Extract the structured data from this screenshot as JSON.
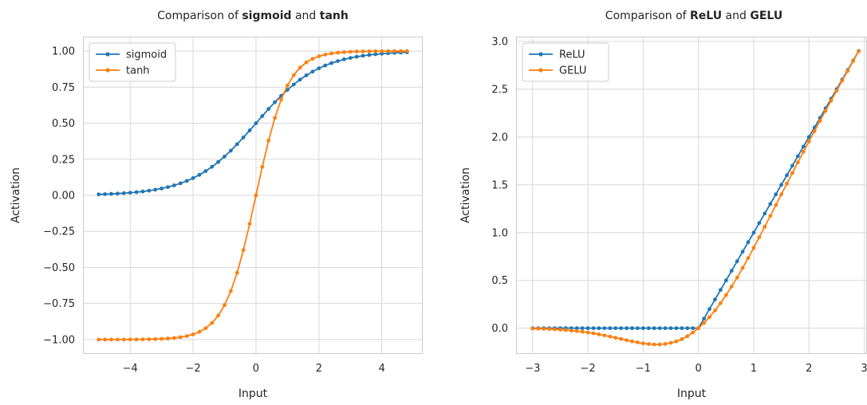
{
  "chart_data": [
    {
      "type": "line",
      "title": {
        "prefix": "Comparison of ",
        "bold1": "sigmoid",
        "mid": " and ",
        "bold2": "tanh"
      },
      "xlabel": "Input",
      "ylabel": "Activation",
      "xlim": [
        -5.5,
        5.3
      ],
      "ylim": [
        -1.1,
        1.1
      ],
      "xticks": [
        -4,
        -2,
        0,
        2,
        4
      ],
      "xtick_labels": [
        "−4",
        "−2",
        "0",
        "2",
        "4"
      ],
      "yticks": [
        -1.0,
        -0.75,
        -0.5,
        -0.25,
        0.0,
        0.25,
        0.5,
        0.75,
        1.0
      ],
      "ytick_labels": [
        "−1.00",
        "−0.75",
        "−0.50",
        "−0.25",
        "0.00",
        "0.25",
        "0.50",
        "0.75",
        "1.00"
      ],
      "grid": true,
      "legend_position": "top-left",
      "series": [
        {
          "name": "sigmoid",
          "color": "#1f77b4",
          "x": [
            -5.0,
            -4.8,
            -4.6,
            -4.4,
            -4.2,
            -4.0,
            -3.8,
            -3.6,
            -3.4,
            -3.2,
            -3.0,
            -2.8,
            -2.6,
            -2.4,
            -2.2,
            -2.0,
            -1.8,
            -1.6,
            -1.4,
            -1.2,
            -1.0,
            -0.8,
            -0.6,
            -0.4,
            -0.2,
            0.0,
            0.2,
            0.4,
            0.6,
            0.8,
            1.0,
            1.2,
            1.4,
            1.6,
            1.8,
            2.0,
            2.2,
            2.4,
            2.6,
            2.8,
            3.0,
            3.2,
            3.4,
            3.6,
            3.8,
            4.0,
            4.2,
            4.4,
            4.6,
            4.8
          ],
          "y": [
            0.0067,
            0.0082,
            0.01,
            0.0121,
            0.0148,
            0.018,
            0.0219,
            0.0266,
            0.0323,
            0.0392,
            0.0474,
            0.0573,
            0.0691,
            0.0832,
            0.0998,
            0.1192,
            0.1419,
            0.168,
            0.1978,
            0.2315,
            0.2689,
            0.31,
            0.3543,
            0.4013,
            0.4502,
            0.5,
            0.5498,
            0.5987,
            0.6457,
            0.69,
            0.7311,
            0.7685,
            0.8022,
            0.832,
            0.8581,
            0.8808,
            0.9002,
            0.9168,
            0.9309,
            0.9427,
            0.9526,
            0.9608,
            0.9677,
            0.9734,
            0.9781,
            0.982,
            0.9852,
            0.9879,
            0.99,
            0.9918
          ]
        },
        {
          "name": "tanh",
          "color": "#ff7f0e",
          "x": [
            -5.0,
            -4.8,
            -4.6,
            -4.4,
            -4.2,
            -4.0,
            -3.8,
            -3.6,
            -3.4,
            -3.2,
            -3.0,
            -2.8,
            -2.6,
            -2.4,
            -2.2,
            -2.0,
            -1.8,
            -1.6,
            -1.4,
            -1.2,
            -1.0,
            -0.8,
            -0.6,
            -0.4,
            -0.2,
            0.0,
            0.2,
            0.4,
            0.6,
            0.8,
            1.0,
            1.2,
            1.4,
            1.6,
            1.8,
            2.0,
            2.2,
            2.4,
            2.6,
            2.8,
            3.0,
            3.2,
            3.4,
            3.6,
            3.8,
            4.0,
            4.2,
            4.4,
            4.6,
            4.8
          ],
          "y": [
            -0.9999,
            -0.9999,
            -0.9998,
            -0.9997,
            -0.9996,
            -0.9993,
            -0.999,
            -0.9985,
            -0.9978,
            -0.9967,
            -0.9951,
            -0.9926,
            -0.989,
            -0.9837,
            -0.9757,
            -0.964,
            -0.9468,
            -0.9217,
            -0.8854,
            -0.8337,
            -0.7616,
            -0.664,
            -0.537,
            -0.3799,
            -0.1974,
            0.0,
            0.1974,
            0.3799,
            0.537,
            0.664,
            0.7616,
            0.8337,
            0.8854,
            0.9217,
            0.9468,
            0.964,
            0.9757,
            0.9837,
            0.989,
            0.9926,
            0.9951,
            0.9967,
            0.9978,
            0.9985,
            0.999,
            0.9993,
            0.9996,
            0.9997,
            0.9998,
            0.9999
          ]
        }
      ]
    },
    {
      "type": "line",
      "title": {
        "prefix": "Comparison of ",
        "bold1": "ReLU",
        "mid": " and ",
        "bold2": "GELU"
      },
      "xlabel": "Input",
      "ylabel": "Activation",
      "xlim": [
        -3.3,
        3.05
      ],
      "ylim": [
        -0.27,
        3.05
      ],
      "xticks": [
        -3,
        -2,
        -1,
        0,
        1,
        2,
        3
      ],
      "xtick_labels": [
        "−3",
        "−2",
        "−1",
        "0",
        "1",
        "2",
        "3"
      ],
      "yticks": [
        0.0,
        0.5,
        1.0,
        1.5,
        2.0,
        2.5,
        3.0
      ],
      "ytick_labels": [
        "0.0",
        "0.5",
        "1.0",
        "1.5",
        "2.0",
        "2.5",
        "3.0"
      ],
      "grid": true,
      "legend_position": "top-left",
      "series": [
        {
          "name": "ReLU",
          "color": "#1f77b4",
          "x": [
            -3.0,
            -2.9,
            -2.8,
            -2.7,
            -2.6,
            -2.5,
            -2.4,
            -2.3,
            -2.2,
            -2.1,
            -2.0,
            -1.9,
            -1.8,
            -1.7,
            -1.6,
            -1.5,
            -1.4,
            -1.3,
            -1.2,
            -1.1,
            -1.0,
            -0.9,
            -0.8,
            -0.7,
            -0.6,
            -0.5,
            -0.4,
            -0.3,
            -0.2,
            -0.1,
            0.0,
            0.1,
            0.2,
            0.3,
            0.4,
            0.5,
            0.6,
            0.7,
            0.8,
            0.9,
            1.0,
            1.1,
            1.2,
            1.3,
            1.4,
            1.5,
            1.6,
            1.7,
            1.8,
            1.9,
            2.0,
            2.1,
            2.2,
            2.3,
            2.4,
            2.5,
            2.6,
            2.7,
            2.8,
            2.9
          ],
          "y": [
            0,
            0,
            0,
            0,
            0,
            0,
            0,
            0,
            0,
            0,
            0,
            0,
            0,
            0,
            0,
            0,
            0,
            0,
            0,
            0,
            0,
            0,
            0,
            0,
            0,
            0,
            0,
            0,
            0,
            0,
            0.0,
            0.1,
            0.2,
            0.3,
            0.4,
            0.5,
            0.6,
            0.7,
            0.8,
            0.9,
            1.0,
            1.1,
            1.2,
            1.3,
            1.4,
            1.5,
            1.6,
            1.7,
            1.8,
            1.9,
            2.0,
            2.1,
            2.2,
            2.3,
            2.4,
            2.5,
            2.6,
            2.7,
            2.8,
            2.9
          ]
        },
        {
          "name": "GELU",
          "color": "#ff7f0e",
          "x": [
            -3.0,
            -2.9,
            -2.8,
            -2.7,
            -2.6,
            -2.5,
            -2.4,
            -2.3,
            -2.2,
            -2.1,
            -2.0,
            -1.9,
            -1.8,
            -1.7,
            -1.6,
            -1.5,
            -1.4,
            -1.3,
            -1.2,
            -1.1,
            -1.0,
            -0.9,
            -0.8,
            -0.7,
            -0.6,
            -0.5,
            -0.4,
            -0.3,
            -0.2,
            -0.1,
            0.0,
            0.1,
            0.2,
            0.3,
            0.4,
            0.5,
            0.6,
            0.7,
            0.8,
            0.9,
            1.0,
            1.1,
            1.2,
            1.3,
            1.4,
            1.5,
            1.6,
            1.7,
            1.8,
            1.9,
            2.0,
            2.1,
            2.2,
            2.3,
            2.4,
            2.5,
            2.6,
            2.7,
            2.8,
            2.9
          ],
          "y": [
            -0.004,
            -0.005,
            -0.007,
            -0.009,
            -0.012,
            -0.016,
            -0.02,
            -0.025,
            -0.031,
            -0.037,
            -0.045,
            -0.054,
            -0.065,
            -0.076,
            -0.088,
            -0.1,
            -0.113,
            -0.126,
            -0.138,
            -0.149,
            -0.159,
            -0.166,
            -0.17,
            -0.17,
            -0.165,
            -0.154,
            -0.138,
            -0.115,
            -0.084,
            -0.046,
            0.0,
            0.054,
            0.116,
            0.185,
            0.262,
            0.346,
            0.435,
            0.53,
            0.63,
            0.734,
            0.841,
            0.951,
            1.062,
            1.174,
            1.287,
            1.4,
            1.512,
            1.624,
            1.735,
            1.846,
            1.955,
            2.062,
            2.169,
            2.275,
            2.38,
            2.485,
            2.589,
            2.692,
            2.795,
            2.897
          ]
        }
      ]
    }
  ]
}
